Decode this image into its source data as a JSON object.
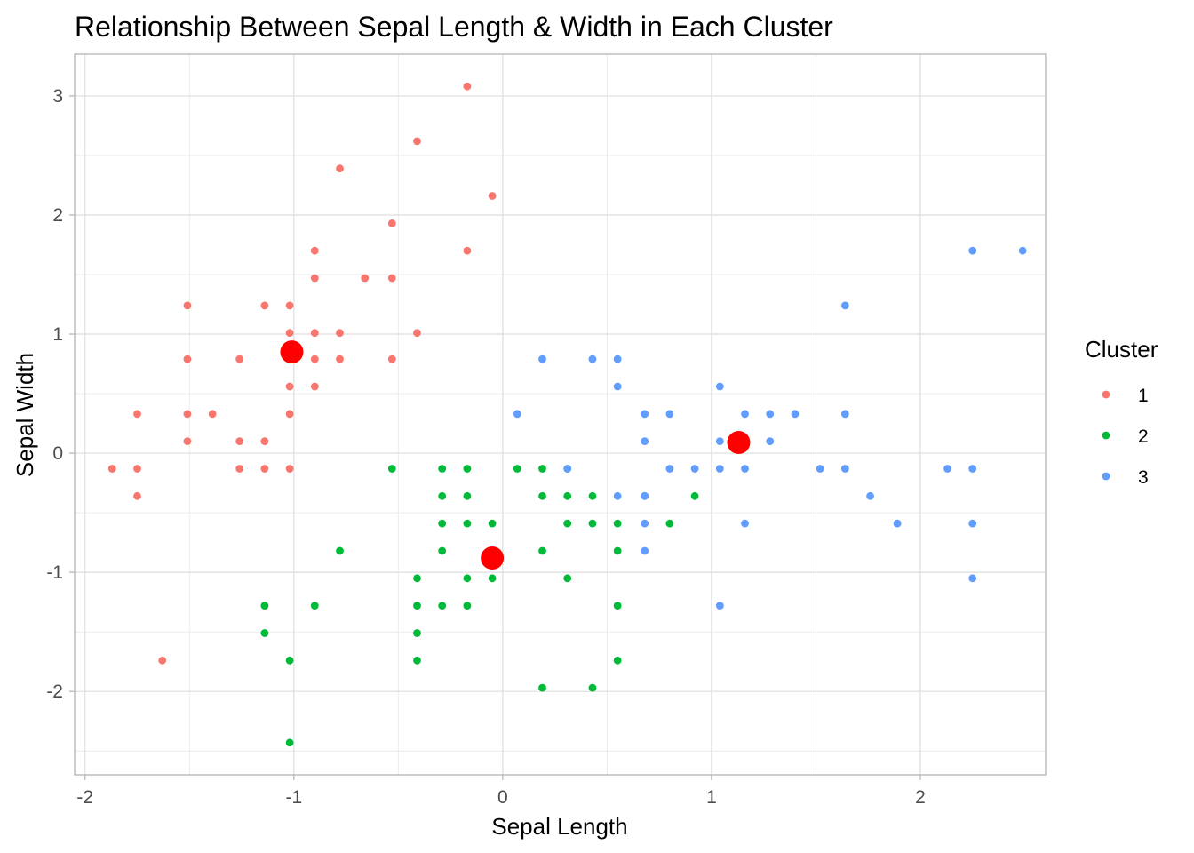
{
  "chart_data": {
    "type": "scatter",
    "title": "Relationship Between Sepal Length & Width in Each Cluster",
    "xlabel": "Sepal Length",
    "ylabel": "Sepal Width",
    "xlim": [
      -2.05,
      2.6
    ],
    "ylim": [
      -2.7,
      3.35
    ],
    "x_ticks": [
      -2,
      -1,
      0,
      1,
      2
    ],
    "y_ticks": [
      -2,
      -1,
      0,
      1,
      2,
      3
    ],
    "x_tick_labels": [
      "-2",
      "-1",
      "0",
      "1",
      "2"
    ],
    "y_tick_labels": [
      "-2",
      "-1",
      "0",
      "1",
      "2",
      "3"
    ],
    "grid": true,
    "legend": {
      "title": "Cluster",
      "placement": "right"
    },
    "colors": {
      "1": "#F8766D",
      "2": "#00BA38",
      "3": "#619CFF",
      "centroid": "#FF0000"
    },
    "series": [
      {
        "name": "1",
        "points": [
          [
            -0.17,
            3.08
          ],
          [
            -0.41,
            2.62
          ],
          [
            -0.78,
            2.39
          ],
          [
            -0.05,
            2.16
          ],
          [
            -0.53,
            1.93
          ],
          [
            -0.9,
            1.7
          ],
          [
            -0.17,
            1.7
          ],
          [
            -0.9,
            1.47
          ],
          [
            -0.66,
            1.47
          ],
          [
            -0.53,
            1.47
          ],
          [
            -1.51,
            1.24
          ],
          [
            -1.14,
            1.24
          ],
          [
            -1.02,
            1.24
          ],
          [
            -1.02,
            1.01
          ],
          [
            -0.9,
            1.01
          ],
          [
            -0.78,
            1.01
          ],
          [
            -0.41,
            1.01
          ],
          [
            -1.51,
            0.79
          ],
          [
            -1.26,
            0.79
          ],
          [
            -0.9,
            0.79
          ],
          [
            -0.78,
            0.79
          ],
          [
            -0.53,
            0.79
          ],
          [
            -1.02,
            0.56
          ],
          [
            -0.9,
            0.56
          ],
          [
            -1.75,
            0.33
          ],
          [
            -1.51,
            0.33
          ],
          [
            -1.39,
            0.33
          ],
          [
            -1.02,
            0.33
          ],
          [
            -1.51,
            0.1
          ],
          [
            -1.26,
            0.1
          ],
          [
            -1.14,
            0.1
          ],
          [
            -1.87,
            -0.13
          ],
          [
            -1.75,
            -0.13
          ],
          [
            -1.26,
            -0.13
          ],
          [
            -1.14,
            -0.13
          ],
          [
            -1.02,
            -0.13
          ],
          [
            -1.75,
            -0.36
          ],
          [
            -1.63,
            -1.74
          ]
        ]
      },
      {
        "name": "2",
        "points": [
          [
            -0.53,
            -0.13
          ],
          [
            -0.29,
            -0.13
          ],
          [
            -0.17,
            -0.13
          ],
          [
            0.07,
            -0.13
          ],
          [
            0.19,
            -0.13
          ],
          [
            0.31,
            -0.13
          ],
          [
            -0.29,
            -0.36
          ],
          [
            -0.17,
            -0.36
          ],
          [
            0.19,
            -0.36
          ],
          [
            0.31,
            -0.36
          ],
          [
            0.43,
            -0.36
          ],
          [
            0.68,
            -0.36
          ],
          [
            0.92,
            -0.36
          ],
          [
            -0.29,
            -0.59
          ],
          [
            -0.17,
            -0.59
          ],
          [
            -0.05,
            -0.59
          ],
          [
            0.31,
            -0.59
          ],
          [
            0.43,
            -0.59
          ],
          [
            0.55,
            -0.59
          ],
          [
            0.8,
            -0.59
          ],
          [
            -0.78,
            -0.82
          ],
          [
            -0.29,
            -0.82
          ],
          [
            0.19,
            -0.82
          ],
          [
            0.55,
            -0.82
          ],
          [
            -0.41,
            -1.05
          ],
          [
            -0.17,
            -1.05
          ],
          [
            -0.05,
            -1.05
          ],
          [
            0.31,
            -1.05
          ],
          [
            -1.14,
            -1.28
          ],
          [
            -0.9,
            -1.28
          ],
          [
            -0.41,
            -1.28
          ],
          [
            -0.29,
            -1.28
          ],
          [
            -0.17,
            -1.28
          ],
          [
            0.55,
            -1.28
          ],
          [
            -1.14,
            -1.51
          ],
          [
            -0.41,
            -1.51
          ],
          [
            -1.02,
            -1.74
          ],
          [
            -0.41,
            -1.74
          ],
          [
            0.55,
            -1.74
          ],
          [
            0.19,
            -1.97
          ],
          [
            0.43,
            -1.97
          ],
          [
            -1.02,
            -2.43
          ]
        ]
      },
      {
        "name": "3",
        "points": [
          [
            2.25,
            1.7
          ],
          [
            2.49,
            1.7
          ],
          [
            1.64,
            1.24
          ],
          [
            0.19,
            0.79
          ],
          [
            0.43,
            0.79
          ],
          [
            0.55,
            0.79
          ],
          [
            0.55,
            0.56
          ],
          [
            1.04,
            0.56
          ],
          [
            0.07,
            0.33
          ],
          [
            0.68,
            0.33
          ],
          [
            0.8,
            0.33
          ],
          [
            1.16,
            0.33
          ],
          [
            1.28,
            0.33
          ],
          [
            1.4,
            0.33
          ],
          [
            1.64,
            0.33
          ],
          [
            0.68,
            0.1
          ],
          [
            1.04,
            0.1
          ],
          [
            1.28,
            0.1
          ],
          [
            0.31,
            -0.13
          ],
          [
            0.8,
            -0.13
          ],
          [
            0.92,
            -0.13
          ],
          [
            1.04,
            -0.13
          ],
          [
            1.16,
            -0.13
          ],
          [
            1.52,
            -0.13
          ],
          [
            1.64,
            -0.13
          ],
          [
            2.13,
            -0.13
          ],
          [
            2.25,
            -0.13
          ],
          [
            0.55,
            -0.36
          ],
          [
            0.68,
            -0.36
          ],
          [
            1.76,
            -0.36
          ],
          [
            0.68,
            -0.59
          ],
          [
            1.16,
            -0.59
          ],
          [
            1.89,
            -0.59
          ],
          [
            2.25,
            -0.59
          ],
          [
            0.68,
            -0.82
          ],
          [
            2.25,
            -1.05
          ],
          [
            1.04,
            -1.28
          ]
        ]
      },
      {
        "name": "centroids",
        "points": [
          [
            -1.01,
            0.85
          ],
          [
            -0.05,
            -0.88
          ],
          [
            1.13,
            0.09
          ]
        ]
      }
    ]
  }
}
